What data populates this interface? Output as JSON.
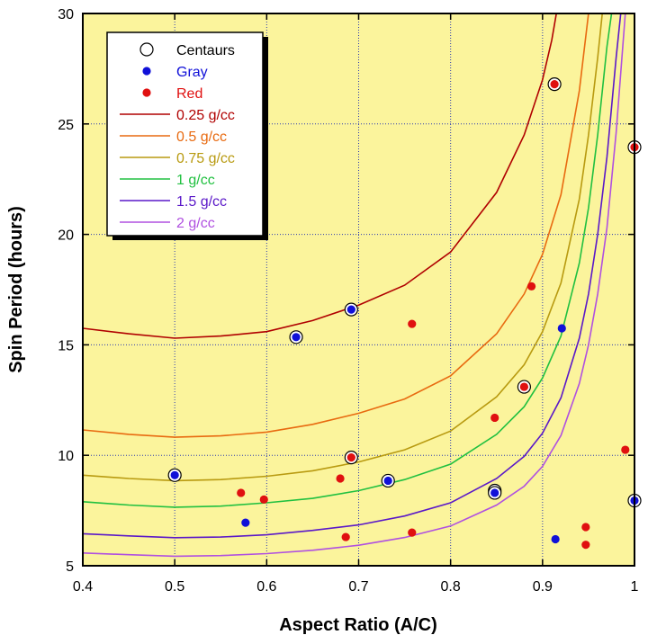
{
  "chart_data": {
    "type": "scatter",
    "xlabel": "Aspect Ratio (A/C)",
    "ylabel": "Spin Period (hours)",
    "xlim": [
      0.4,
      1.0
    ],
    "ylim": [
      5,
      30
    ],
    "x_ticks": [
      0.4,
      0.5,
      0.6,
      0.7,
      0.8,
      0.9,
      1.0
    ],
    "y_ticks": [
      5,
      10,
      15,
      20,
      25,
      30
    ],
    "x_tick_labels": [
      "0.4",
      "0.5",
      "0.6",
      "0.7",
      "0.8",
      "0.9",
      "1"
    ],
    "y_tick_labels": [
      "5",
      "10",
      "15",
      "20",
      "25",
      "30"
    ],
    "grid": true,
    "grid_style": "dotted",
    "background_color": "#fbf49c",
    "legend_position": "top-left",
    "legend": [
      {
        "label": "Centaurs",
        "kind": "open-circle",
        "color": "#000000"
      },
      {
        "label": "Gray",
        "kind": "dot",
        "color": "#1010d8"
      },
      {
        "label": "Red",
        "kind": "dot",
        "color": "#e01010"
      },
      {
        "label": "0.25 g/cc",
        "kind": "line",
        "color": "#b00000"
      },
      {
        "label": "0.5 g/cc",
        "kind": "line",
        "color": "#e86a10"
      },
      {
        "label": "0.75 g/cc",
        "kind": "line",
        "color": "#b89a10"
      },
      {
        "label": "1 g/cc",
        "kind": "line",
        "color": "#20c040"
      },
      {
        "label": "1.5 g/cc",
        "kind": "line",
        "color": "#5a18c8"
      },
      {
        "label": "2 g/cc",
        "kind": "line",
        "color": "#b050e0"
      }
    ],
    "curves": [
      {
        "density": "0.25 g/cc",
        "color": "#b00000",
        "x": [
          0.4,
          0.45,
          0.5,
          0.55,
          0.6,
          0.65,
          0.7,
          0.75,
          0.8,
          0.85,
          0.88,
          0.9,
          0.91,
          0.915
        ],
        "y": [
          15.75,
          15.5,
          15.3,
          15.4,
          15.6,
          16.1,
          16.8,
          17.7,
          19.2,
          21.9,
          24.5,
          27.0,
          28.8,
          30.0
        ]
      },
      {
        "density": "0.5 g/cc",
        "color": "#e86a10",
        "x": [
          0.4,
          0.45,
          0.5,
          0.55,
          0.6,
          0.65,
          0.7,
          0.75,
          0.8,
          0.85,
          0.88,
          0.9,
          0.92,
          0.94,
          0.95
        ],
        "y": [
          11.15,
          10.95,
          10.82,
          10.88,
          11.05,
          11.4,
          11.9,
          12.55,
          13.6,
          15.5,
          17.3,
          19.1,
          21.8,
          26.5,
          30.0
        ]
      },
      {
        "density": "0.75 g/cc",
        "color": "#b89a10",
        "x": [
          0.4,
          0.45,
          0.5,
          0.55,
          0.6,
          0.65,
          0.7,
          0.75,
          0.8,
          0.85,
          0.88,
          0.9,
          0.92,
          0.94,
          0.95,
          0.96,
          0.965
        ],
        "y": [
          9.1,
          8.95,
          8.85,
          8.9,
          9.05,
          9.3,
          9.7,
          10.25,
          11.1,
          12.65,
          14.1,
          15.6,
          17.8,
          21.6,
          24.5,
          28.0,
          30.0
        ]
      },
      {
        "density": "1 g/cc",
        "color": "#20c040",
        "x": [
          0.4,
          0.45,
          0.5,
          0.55,
          0.6,
          0.65,
          0.7,
          0.75,
          0.8,
          0.85,
          0.88,
          0.9,
          0.92,
          0.94,
          0.95,
          0.96,
          0.97,
          0.975
        ],
        "y": [
          7.9,
          7.75,
          7.65,
          7.7,
          7.85,
          8.05,
          8.4,
          8.9,
          9.6,
          10.95,
          12.2,
          13.5,
          15.4,
          18.7,
          21.2,
          24.5,
          28.5,
          30.0
        ]
      },
      {
        "density": "1.5 g/cc",
        "color": "#5a18c8",
        "x": [
          0.4,
          0.45,
          0.5,
          0.55,
          0.6,
          0.65,
          0.7,
          0.75,
          0.8,
          0.85,
          0.88,
          0.9,
          0.92,
          0.94,
          0.95,
          0.96,
          0.97,
          0.98,
          0.985
        ],
        "y": [
          6.45,
          6.35,
          6.27,
          6.3,
          6.4,
          6.6,
          6.85,
          7.25,
          7.85,
          8.95,
          9.95,
          11.0,
          12.6,
          15.3,
          17.3,
          20.0,
          23.5,
          28.0,
          30.0
        ]
      },
      {
        "density": "2 g/cc",
        "color": "#b050e0",
        "x": [
          0.4,
          0.45,
          0.5,
          0.55,
          0.6,
          0.65,
          0.7,
          0.75,
          0.8,
          0.85,
          0.88,
          0.9,
          0.92,
          0.94,
          0.95,
          0.96,
          0.97,
          0.98,
          0.99
        ],
        "y": [
          5.58,
          5.5,
          5.43,
          5.46,
          5.55,
          5.7,
          5.93,
          6.28,
          6.8,
          7.75,
          8.6,
          9.5,
          10.9,
          13.25,
          15.0,
          17.3,
          20.3,
          24.6,
          30.0
        ]
      }
    ],
    "points": [
      {
        "x": 0.5,
        "y": 9.1,
        "group": "Gray",
        "centaur": true
      },
      {
        "x": 0.572,
        "y": 8.3,
        "group": "Red",
        "centaur": false
      },
      {
        "x": 0.577,
        "y": 6.95,
        "group": "Gray",
        "centaur": false
      },
      {
        "x": 0.597,
        "y": 8.0,
        "group": "Red",
        "centaur": false
      },
      {
        "x": 0.632,
        "y": 15.35,
        "group": "Gray",
        "centaur": true
      },
      {
        "x": 0.68,
        "y": 8.95,
        "group": "Red",
        "centaur": false
      },
      {
        "x": 0.686,
        "y": 6.3,
        "group": "Red",
        "centaur": false
      },
      {
        "x": 0.692,
        "y": 16.6,
        "group": "Gray",
        "centaur": true
      },
      {
        "x": 0.692,
        "y": 9.9,
        "group": "Red",
        "centaur": true
      },
      {
        "x": 0.732,
        "y": 8.85,
        "group": "Gray",
        "centaur": true
      },
      {
        "x": 0.758,
        "y": 15.95,
        "group": "Red",
        "centaur": false
      },
      {
        "x": 0.758,
        "y": 6.5,
        "group": "Red",
        "centaur": false
      },
      {
        "x": 0.848,
        "y": 11.7,
        "group": "Red",
        "centaur": false
      },
      {
        "x": 0.848,
        "y": 8.4,
        "group": "Gray",
        "centaur": true
      },
      {
        "x": 0.848,
        "y": 8.3,
        "group": "Gray",
        "centaur": true
      },
      {
        "x": 0.88,
        "y": 13.1,
        "group": "Red",
        "centaur": true
      },
      {
        "x": 0.888,
        "y": 17.65,
        "group": "Red",
        "centaur": false
      },
      {
        "x": 0.913,
        "y": 26.8,
        "group": "Red",
        "centaur": true
      },
      {
        "x": 0.914,
        "y": 6.2,
        "group": "Gray",
        "centaur": false
      },
      {
        "x": 0.921,
        "y": 15.75,
        "group": "Gray",
        "centaur": false
      },
      {
        "x": 0.947,
        "y": 6.75,
        "group": "Red",
        "centaur": false
      },
      {
        "x": 0.947,
        "y": 5.95,
        "group": "Red",
        "centaur": false
      },
      {
        "x": 0.99,
        "y": 10.25,
        "group": "Red",
        "centaur": false
      },
      {
        "x": 1.0,
        "y": 23.95,
        "group": "Red",
        "centaur": true
      },
      {
        "x": 1.0,
        "y": 7.95,
        "group": "Gray",
        "centaur": true
      }
    ]
  }
}
